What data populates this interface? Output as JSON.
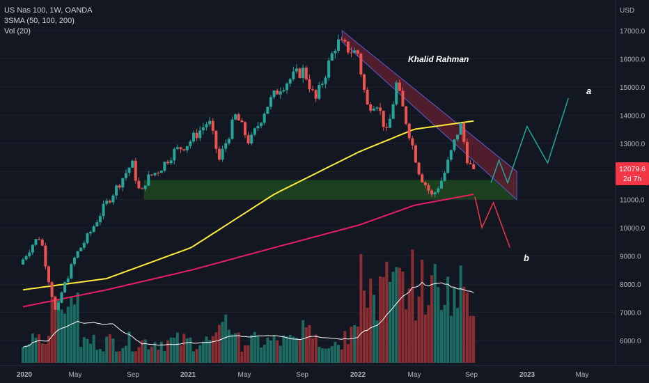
{
  "header": {
    "title": "US Nas 100, 1W, OANDA",
    "indicator_sma": "3SMA (50, 100, 200)",
    "indicator_vol": "Vol (20)"
  },
  "price_tag": {
    "value": "12079.6",
    "countdown": "2d 7h",
    "color": "#f23645"
  },
  "annotations": {
    "author": "Khalid Rahman",
    "scenario_a": "a",
    "scenario_b": "b"
  },
  "colors": {
    "background": "#131722",
    "up_candle": "#26a69a",
    "down_candle": "#ef5350",
    "sma_100": "#ffeb3b",
    "sma_200": "#e91e63",
    "vol_sma": "#ffffff",
    "support_zone": "#1e4620",
    "channel": "#5c1f2e",
    "channel_border": "#5b5bd6",
    "path_a": "#26a69a",
    "path_b": "#f23645"
  },
  "chart_data": {
    "type": "candlestick",
    "symbol": "US Nas 100",
    "timeframe": "1W",
    "source": "OANDA",
    "y_unit": "USD",
    "ylim": [
      5500,
      17800
    ],
    "x_ticks": [
      "2020",
      "May",
      "Sep",
      "2021",
      "May",
      "Sep",
      "2022",
      "May",
      "Sep",
      "2023",
      "May"
    ],
    "y_ticks": [
      "17000.0",
      "16000.0",
      "15000.0",
      "14000.0",
      "13000.0",
      "12000.0",
      "11000.0",
      "10000.0",
      "9000.0",
      "8000.0",
      "7000.0",
      "6000.0"
    ],
    "price_path": [
      [
        "2020-01-01",
        8700
      ],
      [
        "2020-02-01",
        9500
      ],
      [
        "2020-02-15",
        9700
      ],
      [
        "2020-03-01",
        8400
      ],
      [
        "2020-03-20",
        6900
      ],
      [
        "2020-04-01",
        7700
      ],
      [
        "2020-05-01",
        9000
      ],
      [
        "2020-06-01",
        9800
      ],
      [
        "2020-07-01",
        10700
      ],
      [
        "2020-08-01",
        11500
      ],
      [
        "2020-09-01",
        12300
      ],
      [
        "2020-09-20",
        11100
      ],
      [
        "2020-10-01",
        11700
      ],
      [
        "2020-11-01",
        12100
      ],
      [
        "2020-12-01",
        12700
      ],
      [
        "2021-01-01",
        13000
      ],
      [
        "2021-02-15",
        13800
      ],
      [
        "2021-03-10",
        12400
      ],
      [
        "2021-04-15",
        14000
      ],
      [
        "2021-05-15",
        13000
      ],
      [
        "2021-06-20",
        14300
      ],
      [
        "2021-07-20",
        15000
      ],
      [
        "2021-08-20",
        15400
      ],
      [
        "2021-09-10",
        15600
      ],
      [
        "2021-10-05",
        14500
      ],
      [
        "2021-11-20",
        16600
      ],
      [
        "2021-12-20",
        16300
      ],
      [
        "2022-01-05",
        16200
      ],
      [
        "2022-01-25",
        14300
      ],
      [
        "2022-02-15",
        14500
      ],
      [
        "2022-03-10",
        13300
      ],
      [
        "2022-03-30",
        15100
      ],
      [
        "2022-04-20",
        13800
      ],
      [
        "2022-05-20",
        11900
      ],
      [
        "2022-06-16",
        11100
      ],
      [
        "2022-07-10",
        11800
      ],
      [
        "2022-08-16",
        13700
      ],
      [
        "2022-09-01",
        12400
      ],
      [
        "2022-09-10",
        12080
      ]
    ],
    "last_price": 12079.6,
    "series": [
      {
        "name": "SMA 100",
        "points": [
          [
            "2020-01-01",
            7800
          ],
          [
            "2020-07-01",
            8200
          ],
          [
            "2021-01-01",
            9300
          ],
          [
            "2021-07-01",
            11200
          ],
          [
            "2022-01-01",
            12700
          ],
          [
            "2022-05-01",
            13500
          ],
          [
            "2022-09-10",
            13800
          ]
        ]
      },
      {
        "name": "SMA 200",
        "points": [
          [
            "2020-01-01",
            7200
          ],
          [
            "2020-07-01",
            7800
          ],
          [
            "2021-01-01",
            8500
          ],
          [
            "2021-07-01",
            9300
          ],
          [
            "2022-01-01",
            10100
          ],
          [
            "2022-05-01",
            10800
          ],
          [
            "2022-09-10",
            11200
          ]
        ]
      }
    ],
    "zones": [
      {
        "type": "support",
        "from": "2020-09-20",
        "to": "2022-12-10",
        "low": 11000,
        "high": 11700
      },
      {
        "type": "descending_channel",
        "from": "2021-11-25",
        "to": "2022-12-10",
        "upper": [
          17000,
          12000
        ],
        "lower": [
          16600,
          11000
        ]
      }
    ],
    "projections": [
      {
        "label": "a",
        "points": [
          [
            "2022-10-15",
            11600
          ],
          [
            "2022-11-01",
            12400
          ],
          [
            "2022-11-20",
            11600
          ],
          [
            "2023-01-01",
            13600
          ],
          [
            "2023-02-15",
            12300
          ],
          [
            "2023-04-01",
            14600
          ]
        ]
      },
      {
        "label": "b",
        "points": [
          [
            "2022-09-10",
            11100
          ],
          [
            "2022-09-25",
            10000
          ],
          [
            "2022-10-20",
            10900
          ],
          [
            "2022-11-25",
            9300
          ]
        ]
      }
    ]
  }
}
